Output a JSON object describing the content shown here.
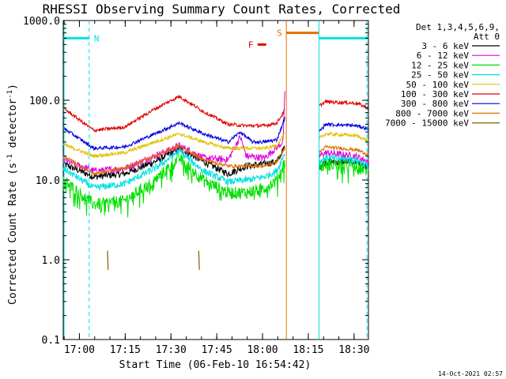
{
  "chart_data": {
    "type": "line",
    "title": "RHESSI Observing Summary Count Rates, Corrected",
    "ylabel_main": "Corrected Count Rate (s",
    "ylabel_sup1": "-1",
    "ylabel_mid": " detector",
    "ylabel_sup2": "-1",
    "ylabel_end": ")",
    "xlabel": "Start Time (06-Feb-10 16:54:42)",
    "timestamp": "14-Oct-2021 02:57",
    "yscale": "log",
    "ylim": [
      0.1,
      1000
    ],
    "xlim_min": [
      0,
      100
    ],
    "y_ticks": [
      {
        "v": 1000,
        "label": "1000.0"
      },
      {
        "v": 100,
        "label": "100.0"
      },
      {
        "v": 10,
        "label": "10.0"
      },
      {
        "v": 1,
        "label": "1.0"
      },
      {
        "v": 0.1,
        "label": "0.1"
      }
    ],
    "x_ticks": [
      {
        "t": 5.3,
        "label": "17:00"
      },
      {
        "t": 20.3,
        "label": "17:15"
      },
      {
        "t": 35.3,
        "label": "17:30"
      },
      {
        "t": 50.3,
        "label": "17:45"
      },
      {
        "t": 65.3,
        "label": "18:00"
      },
      {
        "t": 80.3,
        "label": "18:15"
      },
      {
        "t": 95.3,
        "label": "18:30"
      }
    ],
    "legend_header": [
      "Det 1,3,4,5,6,9,",
      "Att 0"
    ],
    "gaps": [
      [
        72.6,
        83.8
      ]
    ],
    "series": [
      {
        "name": "3 - 6 keV",
        "color": "#000000",
        "t": [
          0,
          10,
          20,
          30,
          38,
          46,
          54,
          60,
          66,
          70,
          72.6,
          83.8,
          86,
          96,
          100
        ],
        "values": [
          16,
          11,
          12,
          17,
          25,
          17,
          12,
          15,
          16,
          17,
          26,
          15,
          17,
          17,
          14
        ]
      },
      {
        "name": "6 - 12 keV",
        "color": "#e000e0",
        "t": [
          0,
          10,
          20,
          30,
          38,
          46,
          54,
          58,
          60,
          66,
          72,
          72.6,
          83.8,
          86,
          96,
          100
        ],
        "values": [
          18,
          13,
          14,
          20,
          27,
          19,
          18,
          35,
          20,
          19,
          30,
          120,
          20,
          22,
          20,
          17
        ]
      },
      {
        "name": "12 - 25 keV",
        "color": "#00e000",
        "t": [
          0,
          10,
          20,
          30,
          38,
          46,
          54,
          60,
          66,
          70,
          72.6,
          83.8,
          86,
          96,
          100
        ],
        "values": [
          10,
          5,
          5.5,
          10,
          19,
          10,
          7,
          7,
          8,
          10,
          17,
          14,
          16,
          15,
          13
        ]
      },
      {
        "name": "25 - 50 keV",
        "color": "#00e0e0",
        "t": [
          0,
          10,
          20,
          30,
          38,
          46,
          54,
          60,
          66,
          70,
          72.6,
          83.8,
          86,
          96,
          100
        ],
        "values": [
          14,
          8,
          9,
          14,
          23,
          13,
          9.5,
          10,
          11,
          13,
          22,
          17,
          19,
          18,
          15
        ]
      },
      {
        "name": "50 - 100 keV",
        "color": "#e0c000",
        "t": [
          0,
          10,
          20,
          30,
          38,
          46,
          54,
          60,
          66,
          70,
          72.6,
          83.8,
          86,
          96,
          100
        ],
        "values": [
          28,
          20,
          22,
          30,
          38,
          30,
          25,
          25,
          25,
          27,
          38,
          33,
          38,
          36,
          31
        ]
      },
      {
        "name": "100 - 300 keV",
        "color": "#e00000",
        "t": [
          0,
          10,
          20,
          30,
          38,
          46,
          54,
          60,
          66,
          70,
          72.6,
          83.8,
          86,
          96,
          100
        ],
        "values": [
          80,
          42,
          46,
          78,
          112,
          72,
          50,
          48,
          48,
          52,
          75,
          85,
          96,
          92,
          80
        ]
      },
      {
        "name": "300 - 800 keV",
        "color": "#0000e0",
        "t": [
          0,
          10,
          20,
          30,
          38,
          46,
          54,
          58,
          62,
          66,
          70,
          72.6,
          83.8,
          86,
          96,
          100
        ],
        "values": [
          45,
          25,
          26,
          38,
          52,
          38,
          30,
          40,
          30,
          30,
          32,
          60,
          40,
          50,
          48,
          44
        ]
      },
      {
        "name": "800 - 7000 keV",
        "color": "#e07000",
        "t": [
          0,
          10,
          20,
          30,
          38,
          46,
          54,
          60,
          66,
          70,
          72.6,
          83.8,
          86,
          96,
          100
        ],
        "values": [
          20,
          12,
          14,
          20,
          27,
          18,
          15,
          15,
          15,
          17,
          25,
          22,
          26,
          24,
          21
        ]
      },
      {
        "name": "7000 - 15000 keV",
        "color": "#806000",
        "t": [
          14.5,
          14.7,
          44.4,
          44.6
        ],
        "values": [
          1.3,
          0.75,
          1.3,
          0.75
        ]
      }
    ],
    "annotations": [
      {
        "label": "N",
        "color": "#00e0e0",
        "t0": 0,
        "t1": 8.5,
        "level": 600,
        "vline_t": 8.5
      },
      {
        "label": "F",
        "color": "#e00000",
        "t0": 63.7,
        "t1": 66.5,
        "level": 500
      },
      {
        "label": "S",
        "color": "#e07000",
        "t0": 73.1,
        "t1": 83.8,
        "level": 700,
        "vline_t": 73.1
      },
      {
        "label": "",
        "color": "#00e0e0",
        "t0": 83.8,
        "t1": 100,
        "level": 600,
        "vline_t": 99.5
      }
    ]
  }
}
